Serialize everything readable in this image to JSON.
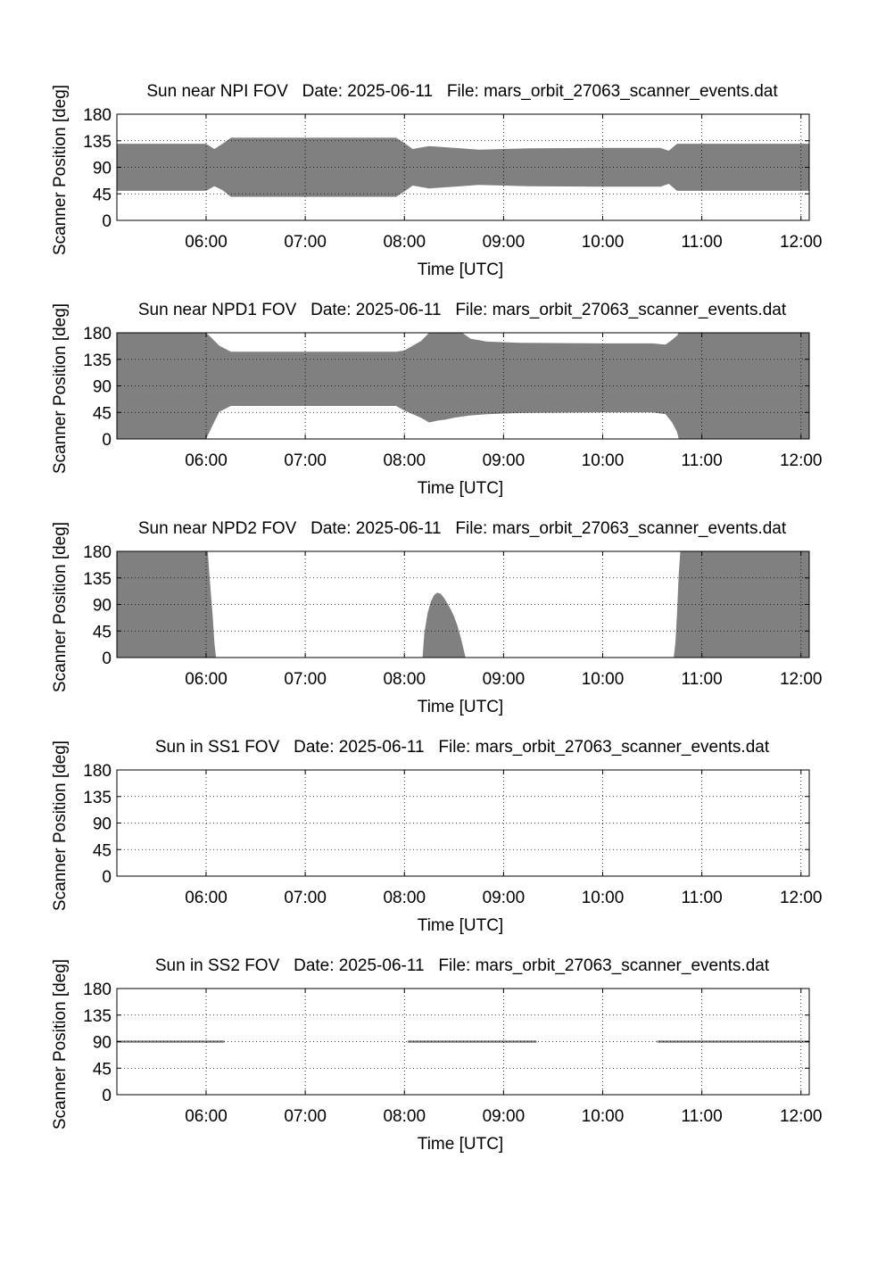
{
  "chart_data": [
    {
      "type": "area",
      "title": "Sun near NPI FOV   Date: 2025-06-11   File: mars_orbit_27063_scanner_events.dat",
      "xlabel": "Time [UTC]",
      "ylabel": "Scanner Position [deg]",
      "xlim": [
        "05:06",
        "12:05"
      ],
      "ylim": [
        0,
        180
      ],
      "yticks": [
        "0",
        "45",
        "90",
        "135",
        "180"
      ],
      "xticks": [
        "06:00",
        "07:00",
        "08:00",
        "09:00",
        "10:00",
        "11:00",
        "12:00"
      ],
      "grid": true,
      "color": "#808080",
      "regions": [
        {
          "x": [
            "05:06",
            "06:00",
            "06:05",
            "06:10",
            "06:15",
            "07:55",
            "08:00",
            "08:05",
            "08:15",
            "08:45",
            "09:15",
            "10:00",
            "10:35",
            "10:40",
            "10:45",
            "12:05"
          ],
          "upper": [
            130,
            130,
            121,
            130,
            140,
            140,
            131,
            121,
            126,
            120,
            122,
            123,
            123,
            118,
            130,
            130
          ],
          "lower": [
            50,
            50,
            58,
            51,
            40,
            40,
            49,
            59,
            54,
            60,
            58,
            57,
            57,
            62,
            50,
            50
          ]
        }
      ]
    },
    {
      "type": "area",
      "title": "Sun near NPD1 FOV   Date: 2025-06-11   File: mars_orbit_27063_scanner_events.dat",
      "xlabel": "Time [UTC]",
      "ylabel": "Scanner Position [deg]",
      "xlim": [
        "05:06",
        "12:05"
      ],
      "ylim": [
        0,
        180
      ],
      "yticks": [
        "0",
        "45",
        "90",
        "135",
        "180"
      ],
      "xticks": [
        "06:00",
        "07:00",
        "08:00",
        "09:00",
        "10:00",
        "11:00",
        "12:00"
      ],
      "grid": true,
      "color": "#808080",
      "regions": [
        {
          "x": [
            "05:06",
            "05:59",
            "06:00",
            "06:03",
            "06:08",
            "06:15",
            "07:55",
            "08:00",
            "08:10",
            "08:15",
            "08:20",
            "08:25",
            "08:30",
            "08:35",
            "08:40",
            "08:50",
            "09:10",
            "10:00",
            "10:30",
            "10:38",
            "10:42",
            "10:45",
            "10:46",
            "12:05"
          ],
          "upper": [
            180,
            180,
            180,
            172,
            158,
            148,
            148,
            150,
            166,
            180,
            180,
            180,
            180,
            180,
            170,
            165,
            163,
            162,
            162,
            160,
            168,
            175,
            180,
            180
          ],
          "lower": [
            0,
            0,
            0,
            18,
            46,
            56,
            56,
            48,
            36,
            28,
            31,
            33,
            36,
            38,
            40,
            42,
            44,
            45,
            45,
            42,
            28,
            12,
            0,
            0
          ]
        }
      ]
    },
    {
      "type": "area",
      "title": "Sun near NPD2 FOV   Date: 2025-06-11   File: mars_orbit_27063_scanner_events.dat",
      "xlabel": "Time [UTC]",
      "ylabel": "Scanner Position [deg]",
      "xlim": [
        "05:06",
        "12:05"
      ],
      "ylim": [
        0,
        180
      ],
      "yticks": [
        "0",
        "45",
        "90",
        "135",
        "180"
      ],
      "xticks": [
        "06:00",
        "07:00",
        "08:00",
        "09:00",
        "10:00",
        "11:00",
        "12:00"
      ],
      "grid": true,
      "color": "#808080",
      "regions": [
        {
          "x": [
            "05:06",
            "06:01",
            "06:02",
            "06:04",
            "06:05",
            "06:06"
          ],
          "upper": [
            180,
            180,
            140,
            70,
            25,
            0
          ],
          "lower": [
            0,
            0,
            0,
            0,
            0,
            0
          ]
        },
        {
          "x": [
            "08:11",
            "08:12",
            "08:14",
            "08:16",
            "08:18",
            "08:20",
            "08:22",
            "08:24",
            "08:26",
            "08:28",
            "08:30",
            "08:32",
            "08:34",
            "08:36",
            "08:37"
          ],
          "upper": [
            0,
            40,
            75,
            95,
            106,
            110,
            108,
            101,
            92,
            82,
            70,
            55,
            35,
            12,
            0
          ],
          "lower": [
            0,
            0,
            0,
            0,
            0,
            0,
            0,
            0,
            0,
            0,
            0,
            0,
            0,
            0,
            0
          ]
        },
        {
          "x": [
            "10:43",
            "10:44",
            "10:45",
            "10:46",
            "10:47",
            "12:05"
          ],
          "upper": [
            0,
            25,
            75,
            140,
            180,
            180
          ],
          "lower": [
            0,
            0,
            0,
            0,
            0,
            0
          ]
        }
      ]
    },
    {
      "type": "area",
      "title": "Sun in SS1 FOV   Date: 2025-06-11   File: mars_orbit_27063_scanner_events.dat",
      "xlabel": "Time [UTC]",
      "ylabel": "Scanner Position [deg]",
      "xlim": [
        "05:06",
        "12:05"
      ],
      "ylim": [
        0,
        180
      ],
      "yticks": [
        "0",
        "45",
        "90",
        "135",
        "180"
      ],
      "xticks": [
        "06:00",
        "07:00",
        "08:00",
        "09:00",
        "10:00",
        "11:00",
        "12:00"
      ],
      "grid": true,
      "color": "#808080",
      "regions": []
    },
    {
      "type": "area",
      "title": "Sun in SS2 FOV   Date: 2025-06-11   File: mars_orbit_27063_scanner_events.dat",
      "xlabel": "Time [UTC]",
      "ylabel": "Scanner Position [deg]",
      "xlim": [
        "05:06",
        "12:05"
      ],
      "ylim": [
        0,
        180
      ],
      "yticks": [
        "0",
        "45",
        "90",
        "135",
        "180"
      ],
      "xticks": [
        "06:00",
        "07:00",
        "08:00",
        "09:00",
        "10:00",
        "11:00",
        "12:00"
      ],
      "grid": true,
      "color": "#808080",
      "regions": [
        {
          "x": [
            "05:06",
            "06:11"
          ],
          "upper": [
            92,
            92
          ],
          "lower": [
            88,
            88
          ]
        },
        {
          "x": [
            "08:02",
            "09:20"
          ],
          "upper": [
            92,
            92
          ],
          "lower": [
            88,
            88
          ]
        },
        {
          "x": [
            "10:33",
            "12:05"
          ],
          "upper": [
            92,
            92
          ],
          "lower": [
            88,
            88
          ]
        }
      ]
    }
  ]
}
